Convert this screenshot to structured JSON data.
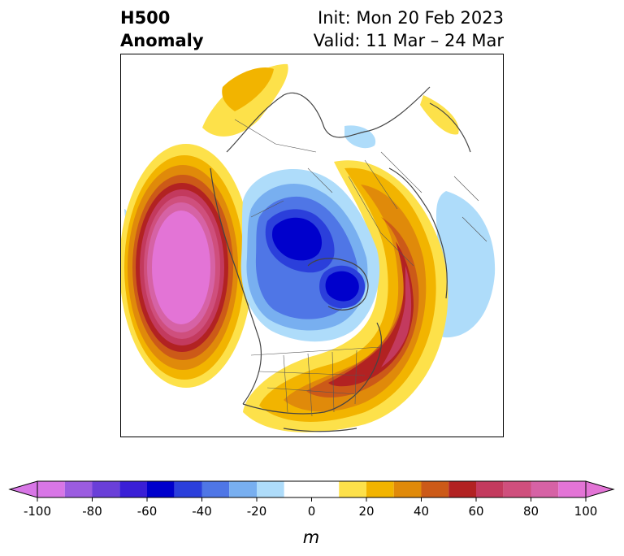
{
  "title": {
    "left_line1": "H500",
    "left_line2": "Anomaly",
    "init": "Init: Mon 20 Feb 2023",
    "valid": "Valid: 11 Mar – 24 Mar"
  },
  "map": {
    "projection": "polar stereographic, North Pole",
    "features": [
      "coastlines",
      "country borders",
      "US state borders",
      "Canadian province borders"
    ]
  },
  "colorbar": {
    "label": "m",
    "extend": "both",
    "levels": [
      -100,
      -90,
      -80,
      -70,
      -60,
      -50,
      -40,
      -30,
      -20,
      -10,
      10,
      20,
      30,
      40,
      50,
      60,
      70,
      80,
      90,
      100
    ],
    "tick_labels": [
      "-100",
      "-80",
      "-60",
      "-40",
      "-20",
      "0",
      "20",
      "40",
      "60",
      "80",
      "100"
    ],
    "colors": [
      "#d876e6",
      "#9b5ce0",
      "#6a3fd8",
      "#3a1fd6",
      "#0000cc",
      "#2b3fdb",
      "#4f76e6",
      "#78aff0",
      "#aedcfa",
      "#ffffff",
      "#fde14a",
      "#f2b400",
      "#e08a0a",
      "#cc5a18",
      "#b22222",
      "#c33a5e",
      "#cf4f7d",
      "#d662a5",
      "#e374d6"
    ],
    "over_color": "#e374d6",
    "under_color": "#d876e6"
  }
}
